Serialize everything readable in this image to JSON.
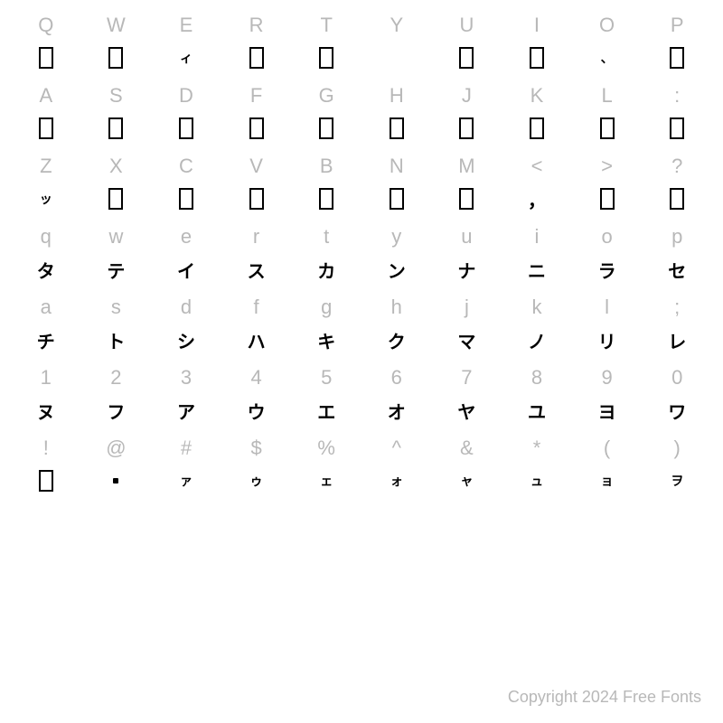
{
  "copyright": "Copyright 2024 Free Fonts",
  "rows": [
    {
      "labels": [
        "Q",
        "W",
        "E",
        "R",
        "T",
        "Y",
        "U",
        "I",
        "O",
        "P"
      ],
      "glyphs": [
        {
          "type": "tofu"
        },
        {
          "type": "tofu"
        },
        {
          "type": "text",
          "value": "ィ",
          "small": true
        },
        {
          "type": "tofu"
        },
        {
          "type": "tofu"
        },
        {
          "type": "empty"
        },
        {
          "type": "tofu"
        },
        {
          "type": "tofu"
        },
        {
          "type": "text",
          "value": "、",
          "small": true
        },
        {
          "type": "tofu"
        }
      ]
    },
    {
      "labels": [
        "A",
        "S",
        "D",
        "F",
        "G",
        "H",
        "J",
        "K",
        "L",
        ":"
      ],
      "glyphs": [
        {
          "type": "tofu"
        },
        {
          "type": "tofu"
        },
        {
          "type": "tofu"
        },
        {
          "type": "tofu"
        },
        {
          "type": "tofu"
        },
        {
          "type": "tofu"
        },
        {
          "type": "tofu"
        },
        {
          "type": "tofu"
        },
        {
          "type": "tofu"
        },
        {
          "type": "tofu"
        }
      ]
    },
    {
      "labels": [
        "Z",
        "X",
        "C",
        "V",
        "B",
        "N",
        "M",
        "<",
        ">",
        "?"
      ],
      "glyphs": [
        {
          "type": "text",
          "value": "ッ",
          "small": true
        },
        {
          "type": "tofu"
        },
        {
          "type": "tofu"
        },
        {
          "type": "tofu"
        },
        {
          "type": "tofu"
        },
        {
          "type": "tofu"
        },
        {
          "type": "tofu"
        },
        {
          "type": "comma",
          "value": "，"
        },
        {
          "type": "tofu"
        },
        {
          "type": "tofu"
        }
      ]
    },
    {
      "labels": [
        "q",
        "w",
        "e",
        "r",
        "t",
        "y",
        "u",
        "i",
        "o",
        "p"
      ],
      "glyphs": [
        {
          "type": "text",
          "value": "タ"
        },
        {
          "type": "text",
          "value": "テ"
        },
        {
          "type": "text",
          "value": "イ"
        },
        {
          "type": "text",
          "value": "ス"
        },
        {
          "type": "text",
          "value": "カ"
        },
        {
          "type": "text",
          "value": "ン"
        },
        {
          "type": "text",
          "value": "ナ"
        },
        {
          "type": "text",
          "value": "ニ"
        },
        {
          "type": "text",
          "value": "ラ"
        },
        {
          "type": "text",
          "value": "セ"
        }
      ]
    },
    {
      "labels": [
        "a",
        "s",
        "d",
        "f",
        "g",
        "h",
        "j",
        "k",
        "l",
        ";"
      ],
      "glyphs": [
        {
          "type": "text",
          "value": "チ"
        },
        {
          "type": "text",
          "value": "ト"
        },
        {
          "type": "text",
          "value": "シ"
        },
        {
          "type": "text",
          "value": "ハ"
        },
        {
          "type": "text",
          "value": "キ"
        },
        {
          "type": "text",
          "value": "ク"
        },
        {
          "type": "text",
          "value": "マ"
        },
        {
          "type": "text",
          "value": "ノ"
        },
        {
          "type": "text",
          "value": "リ"
        },
        {
          "type": "text",
          "value": "レ"
        }
      ]
    },
    {
      "labels": [
        "1",
        "2",
        "3",
        "4",
        "5",
        "6",
        "7",
        "8",
        "9",
        "0"
      ],
      "glyphs": [
        {
          "type": "text",
          "value": "ヌ"
        },
        {
          "type": "text",
          "value": "フ"
        },
        {
          "type": "text",
          "value": "ア"
        },
        {
          "type": "text",
          "value": "ウ"
        },
        {
          "type": "text",
          "value": "エ"
        },
        {
          "type": "text",
          "value": "オ"
        },
        {
          "type": "text",
          "value": "ヤ"
        },
        {
          "type": "text",
          "value": "ユ"
        },
        {
          "type": "text",
          "value": "ヨ"
        },
        {
          "type": "text",
          "value": "ワ"
        }
      ]
    },
    {
      "labels": [
        "!",
        "@",
        "#",
        "$",
        "%",
        "^",
        "&",
        "*",
        "(",
        ")"
      ],
      "glyphs": [
        {
          "type": "tofu"
        },
        {
          "type": "dot"
        },
        {
          "type": "text",
          "value": "ァ",
          "small": true
        },
        {
          "type": "text",
          "value": "ゥ",
          "small": true
        },
        {
          "type": "text",
          "value": "ェ",
          "small": true
        },
        {
          "type": "text",
          "value": "ォ",
          "small": true
        },
        {
          "type": "text",
          "value": "ャ",
          "small": true
        },
        {
          "type": "text",
          "value": "ュ",
          "small": true
        },
        {
          "type": "text",
          "value": "ョ",
          "small": true
        },
        {
          "type": "text",
          "value": "ヲ",
          "small": true
        }
      ]
    }
  ]
}
